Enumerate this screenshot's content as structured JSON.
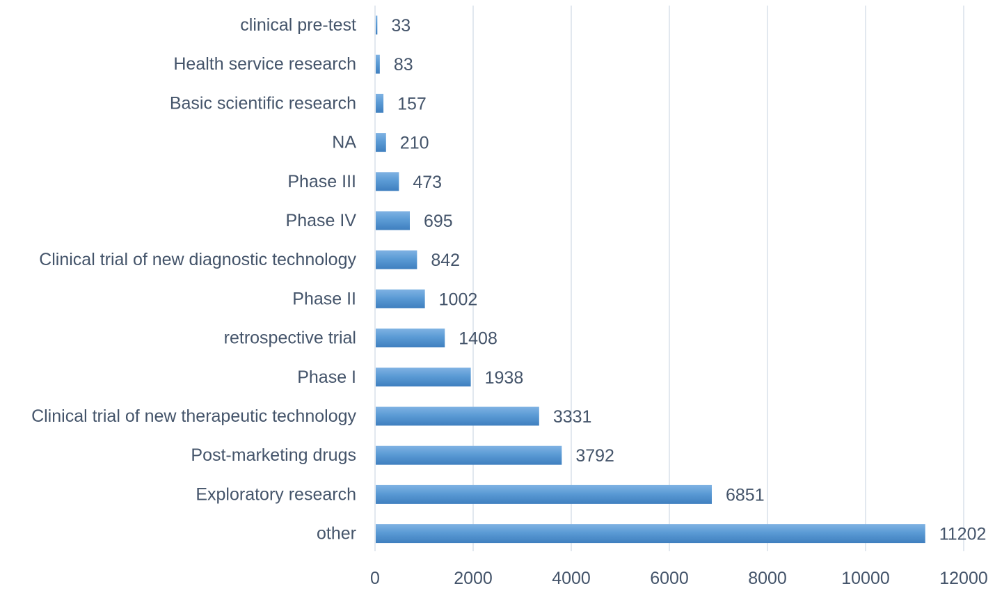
{
  "chart_data": {
    "type": "bar",
    "orientation": "horizontal",
    "categories": [
      "clinical pre-test",
      "Health service research",
      "Basic scientific research",
      "NA",
      "Phase III",
      "Phase IV",
      "Clinical trial of new diagnostic technology",
      "Phase II",
      "retrospective trial",
      "Phase I",
      "Clinical trial of new therapeutic technology",
      "Post-marketing drugs",
      "Exploratory research",
      "other"
    ],
    "values": [
      33,
      83,
      157,
      210,
      473,
      695,
      842,
      1002,
      1408,
      1938,
      3331,
      3792,
      6851,
      11202
    ],
    "data_labels": [
      "33",
      "83",
      "157",
      "210",
      "473",
      "695",
      "842",
      "1002",
      "1408",
      "1938",
      "3331",
      "3792",
      "6851",
      "11202"
    ],
    "x_ticks": [
      "0",
      "2000",
      "4000",
      "6000",
      "8000",
      "10000",
      "12000"
    ],
    "xlim": [
      0,
      12000
    ],
    "grid": "vertical",
    "legend": "none",
    "colors": {
      "bar": "#5b9bd5",
      "bar_light": "#7fb2e3",
      "bar_dark": "#3f7fbf",
      "grid": "#d9e1ea",
      "text": "#44546a"
    }
  }
}
